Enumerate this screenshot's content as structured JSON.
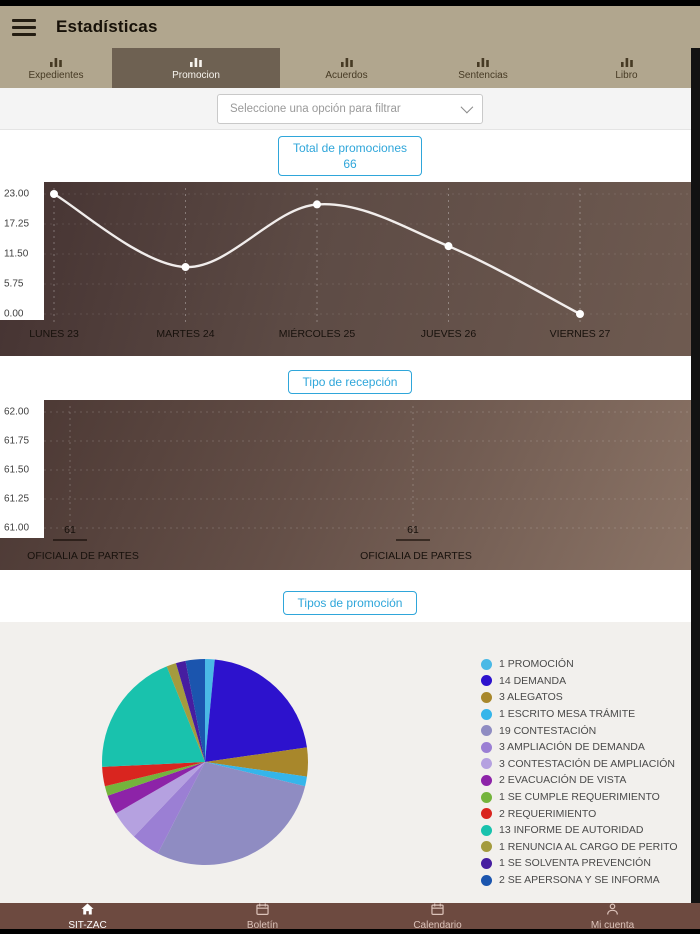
{
  "header": {
    "title": "Estadísticas"
  },
  "tabs": [
    {
      "label": "Expedientes"
    },
    {
      "label": "Promocion"
    },
    {
      "label": "Acuerdos"
    },
    {
      "label": "Sentencias"
    },
    {
      "label": "Libro"
    }
  ],
  "filter": {
    "placeholder": "Seleccione una opción para filtrar"
  },
  "section_labels": {
    "total_title": "Total de promociones",
    "total_value": "66",
    "reception": "Tipo de recepción",
    "promotion_types": "Tipos de promoción"
  },
  "chart_data": [
    {
      "type": "line",
      "title": "Total de promociones",
      "x": [
        "LUNES 23",
        "MARTES 24",
        "MIÉRCOLES 25",
        "JUEVES 26",
        "VIERNES 27"
      ],
      "values": [
        23,
        9,
        21,
        13,
        0
      ],
      "yticks": [
        "23.00",
        "17.25",
        "11.50",
        "5.75",
        "0.00"
      ],
      "ylim": [
        0,
        23
      ],
      "grid": "dashed",
      "line_color": "rgba(250,247,245,0.95)",
      "point_color": "#ffffff"
    },
    {
      "type": "bar",
      "title": "Tipo de recepción",
      "categories": [
        "OFICIALIA DE PARTES",
        "OFICIALIA DE PARTES"
      ],
      "values": [
        61,
        61
      ],
      "value_labels": [
        "61",
        "61"
      ],
      "yticks": [
        "62.00",
        "61.75",
        "61.50",
        "61.25",
        "61.00"
      ],
      "ylim": [
        61,
        62
      ],
      "grid": "dashed"
    },
    {
      "type": "pie",
      "title": "Tipos de promoción",
      "legend_position": "right",
      "slices": [
        {
          "label": "1 PROMOCIÓN",
          "value": 1,
          "color": "#4ab9e6"
        },
        {
          "label": "14 DEMANDA",
          "value": 14,
          "color": "#2d12cd"
        },
        {
          "label": "3 ALEGATOS",
          "value": 3,
          "color": "#a8872b"
        },
        {
          "label": "1 ESCRITO MESA TRÁMITE",
          "value": 1,
          "color": "#35b5ea"
        },
        {
          "label": "19 CONTESTACIÓN",
          "value": 19,
          "color": "#8f8cc2"
        },
        {
          "label": "3 AMPLIACIÓN DE DEMANDA",
          "value": 3,
          "color": "#9b7fd4"
        },
        {
          "label": "3 CONTESTACIÓN DE AMPLIACIÓN",
          "value": 3,
          "color": "#b5a1e0"
        },
        {
          "label": "2 EVACUACIÓN DE VISTA",
          "value": 2,
          "color": "#8d23a8"
        },
        {
          "label": "1 SE CUMPLE REQUERIMIENTO",
          "value": 1,
          "color": "#74b43c"
        },
        {
          "label": "2 REQUERIMIENTO",
          "value": 2,
          "color": "#d9251f"
        },
        {
          "label": "13 INFORME DE AUTORIDAD",
          "value": 13,
          "color": "#19c2ad"
        },
        {
          "label": "1 RENUNCIA AL CARGO DE PERITO",
          "value": 1,
          "color": "#a49b3e"
        },
        {
          "label": "1 SE SOLVENTA PREVENCIÓN",
          "value": 1,
          "color": "#461da0"
        },
        {
          "label": "2 SE APERSONA Y SE INFORMA",
          "value": 2,
          "color": "#1b55ae"
        }
      ]
    }
  ],
  "bottom_nav": [
    {
      "label": "SIT-ZAC",
      "icon": "home"
    },
    {
      "label": "Boletín",
      "icon": "calendar"
    },
    {
      "label": "Calendario",
      "icon": "calendar"
    },
    {
      "label": "Mi cuenta",
      "icon": "person"
    }
  ]
}
